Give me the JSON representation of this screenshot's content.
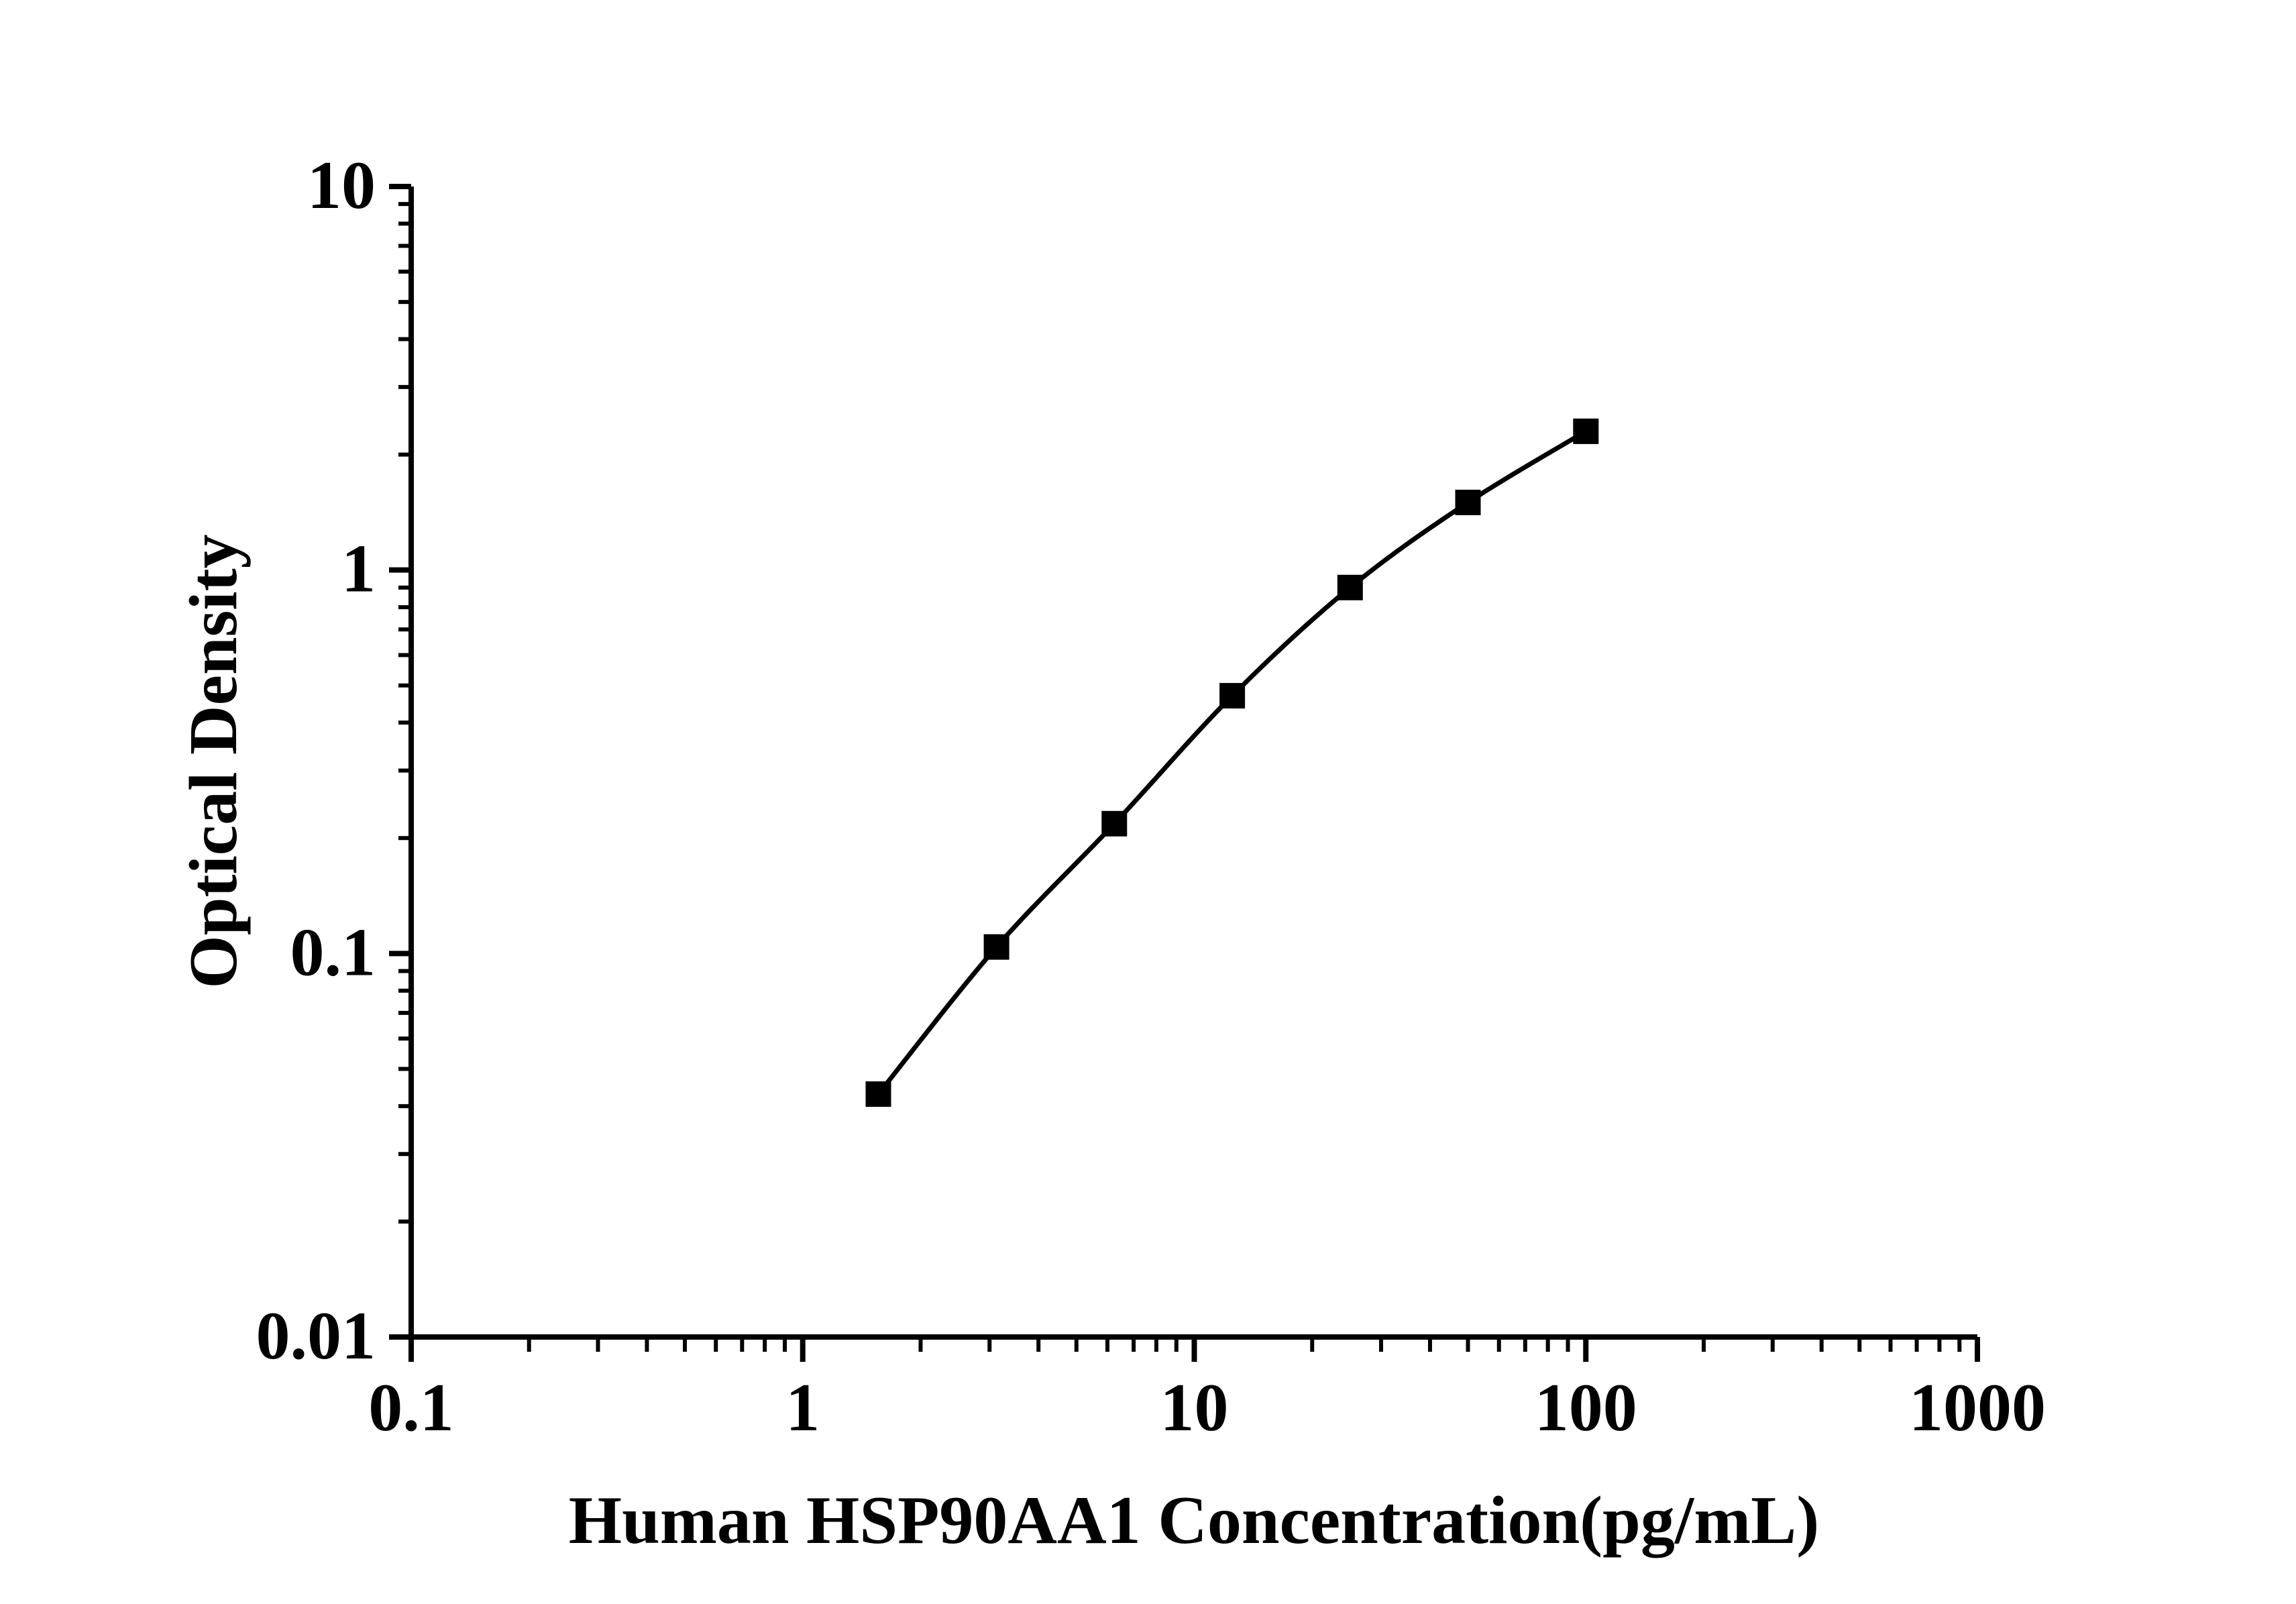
{
  "chart_data": {
    "type": "line",
    "title": "",
    "xlabel": "Human HSP90AA1 Concentration(pg/mL)",
    "ylabel": "Optical Density",
    "x_scale": "log",
    "y_scale": "log",
    "xlim": [
      0.1,
      1000
    ],
    "ylim": [
      0.01,
      10
    ],
    "grid": false,
    "legend": "none",
    "x_ticks": [
      {
        "v": 0.1,
        "label": "0.1"
      },
      {
        "v": 1,
        "label": "1"
      },
      {
        "v": 10,
        "label": "10"
      },
      {
        "v": 100,
        "label": "100"
      },
      {
        "v": 1000,
        "label": "1000"
      }
    ],
    "y_ticks": [
      {
        "v": 10,
        "label": "10"
      },
      {
        "v": 1,
        "label": "1"
      },
      {
        "v": 0.1,
        "label": "0.1"
      },
      {
        "v": 0.01,
        "label": "0.01"
      }
    ],
    "series": [
      {
        "name": "standard-curve",
        "marker": "filled-square",
        "x": [
          1.56,
          3.125,
          6.25,
          12.5,
          25,
          50,
          100
        ],
        "y": [
          0.043,
          0.104,
          0.218,
          0.47,
          0.9,
          1.5,
          2.3
        ]
      }
    ],
    "colors": {
      "curve": "#000000",
      "marker": "#000000",
      "axis": "#000000",
      "text": "#000000",
      "background": "#ffffff"
    }
  }
}
